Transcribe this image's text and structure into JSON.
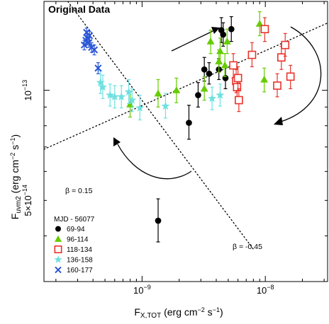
{
  "chart_data": {
    "type": "scatter",
    "title": "Original Data",
    "xlabel": "F",
    "xlabel_sub": "X,TOT",
    "xlabel_units": " (erg cm",
    "xlabel_exp1": "−2",
    "xlabel_mid": " s",
    "xlabel_exp2": "−1",
    "xlabel_end": ")",
    "ylabel": "F",
    "ylabel_sub": "uvm2",
    "ylabel_units": " (erg cm",
    "ylabel_exp1": "−2",
    "ylabel_mid": " s",
    "ylabel_exp2": "−1",
    "ylabel_end": ")",
    "xscale": "log",
    "yscale": "log",
    "xlim": [
      1.6e-10,
      3.2e-08
    ],
    "ylim": [
      3e-14,
      1.75e-13
    ],
    "x_ticks": [
      {
        "value": 1e-09,
        "base": "10",
        "exp": "−9"
      },
      {
        "value": 1e-08,
        "base": "10",
        "exp": "−8"
      }
    ],
    "y_ticks": [
      {
        "value": 5e-14,
        "base": "5×10",
        "exp": "−14"
      },
      {
        "value": 1e-13,
        "base": "10",
        "exp": "−13"
      }
    ],
    "grid": false,
    "legend": {
      "title": "MJD - 56077",
      "position": "bottom-left"
    },
    "series": [
      {
        "name": "69-94",
        "marker": "circle",
        "color": "#000000",
        "points": [
          {
            "x": 1.35e-09,
            "y": 4.4e-14,
            "lo": 3.85e-14,
            "hi": 5.05e-14
          },
          {
            "x": 2.4e-09,
            "y": 8.15e-14,
            "lo": 7.35e-14,
            "hi": 9.1e-14
          },
          {
            "x": 2.85e-09,
            "y": 9.7e-14,
            "lo": 9e-14,
            "hi": 1.05e-13
          },
          {
            "x": 3.2e-09,
            "y": 1.14e-13,
            "lo": 1.06e-13,
            "hi": 1.23e-13
          },
          {
            "x": 3.5e-09,
            "y": 1.11e-13,
            "lo": 1.04e-13,
            "hi": 1.19e-13
          },
          {
            "x": 4.2e-09,
            "y": 1.14e-13,
            "lo": 1.07e-13,
            "hi": 1.22e-13
          },
          {
            "x": 4.4e-09,
            "y": 1.46e-13,
            "lo": 1.35e-13,
            "hi": 1.58e-13
          },
          {
            "x": 4.55e-09,
            "y": 1.42e-13,
            "lo": 1.32e-13,
            "hi": 1.53e-13
          },
          {
            "x": 4.75e-09,
            "y": 1.08e-13,
            "lo": 1.01e-13,
            "hi": 1.16e-13
          },
          {
            "x": 5.3e-09,
            "y": 1.47e-13,
            "lo": 1.36e-13,
            "hi": 1.59e-13
          }
        ]
      },
      {
        "name": "96-114",
        "marker": "triangle",
        "color": "#66cc00",
        "points": [
          {
            "x": 8e-10,
            "y": 9.15e-14,
            "lo": 8.45e-14,
            "hi": 9.9e-14
          },
          {
            "x": 1.35e-09,
            "y": 9.8e-14,
            "lo": 9e-14,
            "hi": 1.07e-13
          },
          {
            "x": 1.9e-09,
            "y": 1e-13,
            "lo": 9.25e-14,
            "hi": 1.08e-13
          },
          {
            "x": 3.2e-09,
            "y": 1.01e-13,
            "lo": 9.4e-14,
            "hi": 1.09e-13
          },
          {
            "x": 3.6e-09,
            "y": 1.36e-13,
            "lo": 1.26e-13,
            "hi": 1.46e-13
          },
          {
            "x": 4.2e-09,
            "y": 1.2e-13,
            "lo": 1.12e-13,
            "hi": 1.29e-13
          },
          {
            "x": 4.3e-09,
            "y": 1.28e-13,
            "lo": 1.18e-13,
            "hi": 1.39e-13
          },
          {
            "x": 4.7e-09,
            "y": 1.17e-13,
            "lo": 1.09e-13,
            "hi": 1.26e-13
          },
          {
            "x": 4.9e-09,
            "y": 1.36e-13,
            "lo": 1.26e-13,
            "hi": 1.47e-13
          },
          {
            "x": 9e-09,
            "y": 1.52e-13,
            "lo": 1.41e-13,
            "hi": 1.64e-13
          },
          {
            "x": 9.8e-09,
            "y": 1.07e-13,
            "lo": 9.9e-14,
            "hi": 1.15e-13
          }
        ]
      },
      {
        "name": "118-134",
        "marker": "square",
        "color": "#e8332b",
        "points": [
          {
            "x": 5.5e-09,
            "y": 1.17e-13,
            "lo": 1.08e-13,
            "hi": 1.26e-13
          },
          {
            "x": 5.8e-09,
            "y": 1.06e-13,
            "lo": 9.85e-14,
            "hi": 1.14e-13
          },
          {
            "x": 5.9e-09,
            "y": 1.02e-13,
            "lo": 9.5e-14,
            "hi": 1.1e-13
          },
          {
            "x": 6e-09,
            "y": 1.08e-13,
            "lo": 1e-13,
            "hi": 1.16e-13
          },
          {
            "x": 6.1e-09,
            "y": 9.4e-14,
            "lo": 8.75e-14,
            "hi": 1.01e-13
          },
          {
            "x": 7.8e-09,
            "y": 1.25e-13,
            "lo": 1.16e-13,
            "hi": 1.35e-13
          },
          {
            "x": 9.9e-09,
            "y": 1.47e-13,
            "lo": 1.36e-13,
            "hi": 1.58e-13
          },
          {
            "x": 1.25e-08,
            "y": 1.03e-13,
            "lo": 9.6e-14,
            "hi": 1.11e-13
          },
          {
            "x": 1.35e-08,
            "y": 1.23e-13,
            "lo": 1.14e-13,
            "hi": 1.32e-13
          },
          {
            "x": 1.45e-08,
            "y": 1.33e-13,
            "lo": 1.24e-13,
            "hi": 1.43e-13
          },
          {
            "x": 1.6e-08,
            "y": 1.09e-13,
            "lo": 1.01e-13,
            "hi": 1.17e-13
          }
        ]
      },
      {
        "name": "136-158",
        "marker": "star",
        "color": "#6fe0e0",
        "points": [
          {
            "x": 4.6e-10,
            "y": 1.05e-13,
            "lo": 9.8e-14,
            "hi": 1.13e-13
          },
          {
            "x": 4.8e-10,
            "y": 1.02e-13,
            "lo": 9.5e-14,
            "hi": 1.1e-13
          },
          {
            "x": 5.5e-10,
            "y": 9.7e-14,
            "lo": 9.05e-14,
            "hi": 1.04e-13
          },
          {
            "x": 6e-10,
            "y": 9.6e-14,
            "lo": 8.95e-14,
            "hi": 1.03e-13
          },
          {
            "x": 6.8e-10,
            "y": 9.6e-14,
            "lo": 8.95e-14,
            "hi": 1.03e-13
          },
          {
            "x": 7.8e-10,
            "y": 9.9e-14,
            "lo": 9.2e-14,
            "hi": 1.07e-13
          },
          {
            "x": 8.3e-10,
            "y": 9.4e-14,
            "lo": 8.75e-14,
            "hi": 1.01e-13
          },
          {
            "x": 9.6e-10,
            "y": 8.95e-14,
            "lo": 8.3e-14,
            "hi": 9.7e-14
          },
          {
            "x": 1.55e-09,
            "y": 9.05e-14,
            "lo": 8.4e-14,
            "hi": 9.8e-14
          },
          {
            "x": 3.7e-09,
            "y": 9.5e-14,
            "lo": 8.85e-14,
            "hi": 1.02e-13
          },
          {
            "x": 4.3e-09,
            "y": 9.7e-14,
            "lo": 9.05e-14,
            "hi": 1.04e-13
          }
        ]
      },
      {
        "name": "160-177",
        "marker": "x",
        "color": "#2a55d6",
        "points": [
          {
            "x": 3.4e-10,
            "y": 1.33e-13,
            "lo": 1.29e-13,
            "hi": 1.37e-13
          },
          {
            "x": 3.5e-10,
            "y": 1.37e-13,
            "lo": 1.33e-13,
            "hi": 1.41e-13
          },
          {
            "x": 3.55e-10,
            "y": 1.44e-13,
            "lo": 1.4e-13,
            "hi": 1.48e-13
          },
          {
            "x": 3.6e-10,
            "y": 1.39e-13,
            "lo": 1.35e-13,
            "hi": 1.43e-13
          },
          {
            "x": 3.7e-10,
            "y": 1.35e-13,
            "lo": 1.31e-13,
            "hi": 1.39e-13
          },
          {
            "x": 3.75e-10,
            "y": 1.41e-13,
            "lo": 1.37e-13,
            "hi": 1.45e-13
          },
          {
            "x": 3.9e-10,
            "y": 1.31e-13,
            "lo": 1.27e-13,
            "hi": 1.35e-13
          },
          {
            "x": 4.1e-10,
            "y": 1.29e-13,
            "lo": 1.25e-13,
            "hi": 1.33e-13
          },
          {
            "x": 4.4e-10,
            "y": 1.15e-13,
            "lo": 1.11e-13,
            "hi": 1.19e-13
          }
        ]
      }
    ],
    "fit_lines": [
      {
        "label_base": "β = ",
        "label_value": "0.15",
        "slope": 0.15,
        "x_anchor": 1.6e-10,
        "y_anchor": 6.9e-14,
        "x_end": 3.2e-08
      },
      {
        "label_base": "β = ",
        "label_value": "-0.45",
        "slope": -0.45,
        "x_anchor": 2.5e-10,
        "y_anchor": 1.75e-13,
        "x_end": 8e-09
      }
    ],
    "annotations": [
      "β = 0.15",
      "β = -0.45"
    ]
  }
}
